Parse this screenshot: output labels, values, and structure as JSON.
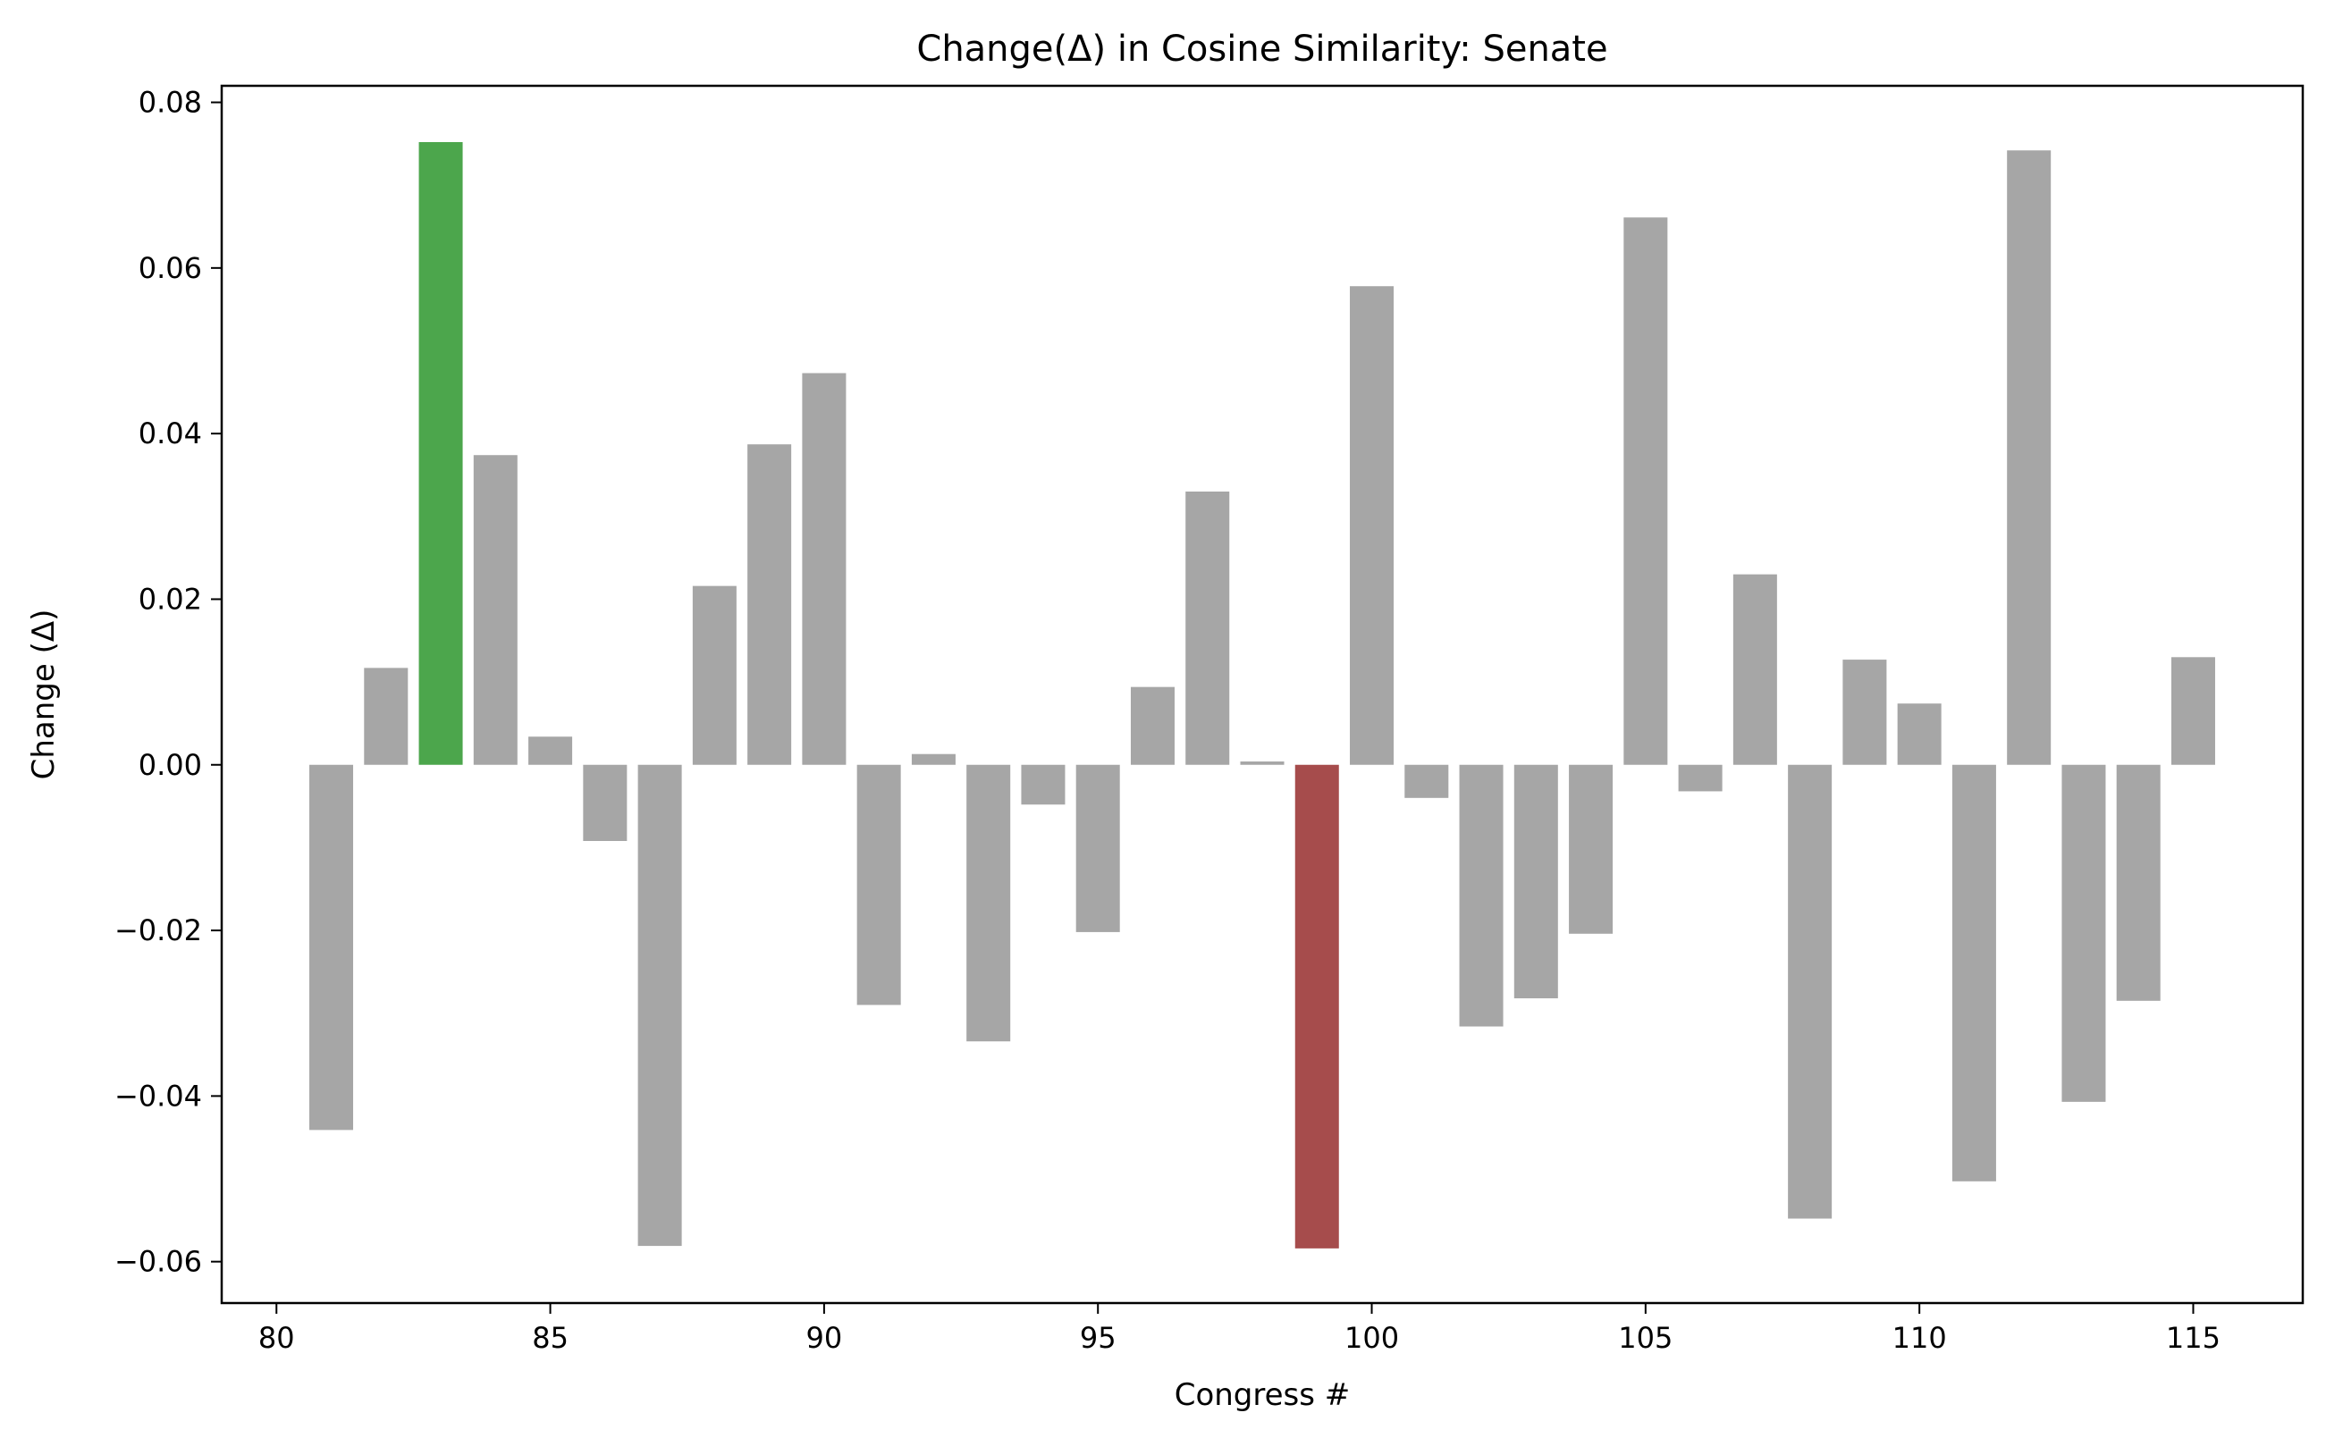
{
  "chart_data": {
    "type": "bar",
    "title": "Change(Δ) in Cosine Similarity: Senate",
    "xlabel": "Congress #",
    "ylabel": "Change (Δ)",
    "xlim": [
      79,
      117
    ],
    "ylim": [
      -0.065,
      0.082
    ],
    "xticks": [
      80,
      85,
      90,
      95,
      100,
      105,
      110,
      115
    ],
    "xtick_labels": [
      "80",
      "85",
      "90",
      "95",
      "100",
      "105",
      "110",
      "115"
    ],
    "yticks": [
      -0.06,
      -0.04,
      -0.02,
      0.0,
      0.02,
      0.04,
      0.06,
      0.08
    ],
    "ytick_labels": [
      "−0.06",
      "−0.04",
      "−0.02",
      "0.00",
      "0.02",
      "0.04",
      "0.06",
      "0.08"
    ],
    "grid": false,
    "x": [
      81,
      82,
      83,
      84,
      85,
      86,
      87,
      88,
      89,
      90,
      91,
      92,
      93,
      94,
      95,
      96,
      97,
      98,
      99,
      100,
      101,
      102,
      103,
      104,
      105,
      106,
      107,
      108,
      109,
      110,
      111,
      112,
      113,
      114,
      115
    ],
    "values": [
      -0.0441,
      0.0117,
      0.0752,
      0.0374,
      0.0034,
      -0.0092,
      -0.0581,
      0.0216,
      0.0387,
      0.0473,
      -0.029,
      0.0013,
      -0.0334,
      -0.0048,
      -0.0202,
      0.0094,
      0.033,
      0.0004,
      -0.0584,
      0.0578,
      -0.004,
      -0.0316,
      -0.0282,
      -0.0204,
      0.0661,
      -0.0032,
      0.023,
      -0.0548,
      0.0127,
      0.0074,
      -0.0503,
      0.0742,
      -0.0407,
      -0.0285,
      0.013
    ],
    "colors": {
      "default": "#a6a6a6",
      "max": "#4ca64c",
      "min": "#a64c4c"
    }
  }
}
